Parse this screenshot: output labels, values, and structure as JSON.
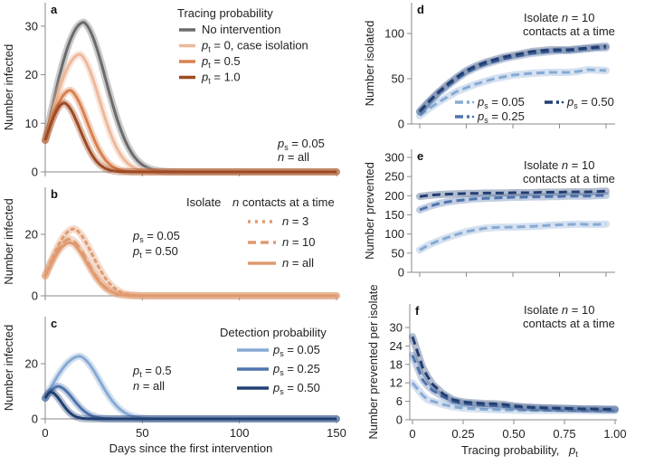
{
  "chart_data": [
    {
      "id": "a",
      "type": "line",
      "panel_letter": "a",
      "xlabel": "",
      "ylabel": "Number infected",
      "xlim": [
        0,
        150
      ],
      "ylim": [
        0,
        35
      ],
      "xticks": [
        0,
        50,
        100,
        150
      ],
      "xtick_labels": [
        "",
        "",
        "",
        ""
      ],
      "yticks": [
        0,
        10,
        20,
        30
      ],
      "ytick_labels": [
        "0",
        "10",
        "20",
        "30"
      ],
      "legend_title": "Tracing probability",
      "legend_position": "top-right",
      "annotations": [
        {
          "sym": "p",
          "sub": "s",
          "text": " = 0.05"
        },
        {
          "sym": "n",
          "sub": "",
          "text": " = all"
        }
      ],
      "series": [
        {
          "name": "No intervention",
          "legend": {
            "text": "No intervention"
          },
          "color": "#6b6b6b",
          "dash": "solid",
          "peak_day": 20,
          "peak": 30.8,
          "start": 6.5,
          "decay": 17
        },
        {
          "name": "pt = 0, case isolation",
          "legend": {
            "sym": "p",
            "sub": "t",
            "text": " = 0, case isolation"
          },
          "color": "#edb89a",
          "dash": "solid",
          "peak_day": 18,
          "peak": 24.2,
          "start": 6.5,
          "decay": 15
        },
        {
          "name": "pt = 0.5",
          "legend": {
            "sym": "p",
            "sub": "t",
            "text": " = 0.5"
          },
          "color": "#d9804f",
          "dash": "solid",
          "peak_day": 13,
          "peak": 16.8,
          "start": 6.5,
          "decay": 13
        },
        {
          "name": "pt = 1.0",
          "legend": {
            "sym": "p",
            "sub": "t",
            "text": " = 1.0"
          },
          "color": "#9e4a22",
          "dash": "solid",
          "peak_day": 10,
          "peak": 14.2,
          "start": 6.5,
          "decay": 12
        }
      ]
    },
    {
      "id": "b",
      "type": "line",
      "panel_letter": "b",
      "xlabel": "",
      "ylabel": "Number infected",
      "xlim": [
        0,
        150
      ],
      "ylim": [
        0,
        35
      ],
      "xticks": [
        0,
        50,
        100,
        150
      ],
      "xtick_labels": [
        "",
        "",
        "",
        ""
      ],
      "yticks": [
        0,
        20
      ],
      "ytick_labels": [
        "0",
        "20"
      ],
      "legend_title": "Isolate n contacts at a time",
      "legend_position": "top-right",
      "annotations": [
        {
          "sym": "p",
          "sub": "s",
          "text": " = 0.05"
        },
        {
          "sym": "p",
          "sub": "t",
          "text": " = 0.50"
        }
      ],
      "series": [
        {
          "name": "n = 3",
          "legend": {
            "sym": "n",
            "sub": "",
            "text": " = 3"
          },
          "color": "#e09a70",
          "dash": "dotted",
          "peak_day": 15,
          "peak": 21.8,
          "start": 6.5,
          "decay": 14
        },
        {
          "name": "n = 10",
          "legend": {
            "sym": "n",
            "sub": "",
            "text": " = 10"
          },
          "color": "#e09a70",
          "dash": "dashed",
          "peak_day": 13,
          "peak": 18.5,
          "start": 6.5,
          "decay": 13
        },
        {
          "name": "n = all",
          "legend": {
            "sym": "n",
            "sub": "",
            "text": " = all"
          },
          "color": "#e09a70",
          "dash": "solid",
          "peak_day": 13,
          "peak": 17.3,
          "start": 6.5,
          "decay": 13
        }
      ]
    },
    {
      "id": "c",
      "type": "line",
      "panel_letter": "c",
      "xlabel": "Days since the first intervention",
      "ylabel": "Number infected",
      "xlim": [
        0,
        150
      ],
      "ylim": [
        0,
        35
      ],
      "xticks": [
        0,
        50,
        100,
        150
      ],
      "xtick_labels": [
        "0",
        "50",
        "100",
        "150"
      ],
      "yticks": [
        0,
        20
      ],
      "ytick_labels": [
        "0",
        "20"
      ],
      "legend_title": "Detection probability",
      "legend_position": "top-right",
      "annotations": [
        {
          "sym": "p",
          "sub": "t",
          "text": " = 0.5"
        },
        {
          "sym": "n",
          "sub": "",
          "text": " = all"
        }
      ],
      "series": [
        {
          "name": "ps = 0.05",
          "legend": {
            "sym": "p",
            "sub": "s",
            "text": " = 0.05"
          },
          "color": "#86aad3",
          "dash": "solid",
          "peak_day": 18,
          "peak": 22.7,
          "start": 7.5,
          "decay": 15
        },
        {
          "name": "ps = 0.25",
          "legend": {
            "sym": "p",
            "sub": "s",
            "text": " = 0.25"
          },
          "color": "#4f74ad",
          "dash": "solid",
          "peak_day": 7,
          "peak": 11.8,
          "start": 7.5,
          "decay": 11
        },
        {
          "name": "ps = 0.50",
          "legend": {
            "sym": "p",
            "sub": "s",
            "text": " = 0.50"
          },
          "color": "#223f72",
          "dash": "solid",
          "peak_day": 3,
          "peak": 9.8,
          "start": 7.5,
          "decay": 8
        }
      ]
    },
    {
      "id": "d",
      "type": "line",
      "panel_letter": "d",
      "xlabel": "",
      "ylabel": "Number isolated",
      "xlim": [
        0,
        1
      ],
      "ylim": [
        0,
        130
      ],
      "xticks": [
        0,
        0.25,
        0.5,
        0.75,
        1.0
      ],
      "xtick_labels": [
        "",
        "",
        "",
        "",
        ""
      ],
      "yticks": [
        0,
        50,
        100
      ],
      "ytick_labels": [
        "0",
        "50",
        "100"
      ],
      "annotations_text": [
        "Isolate n = 10",
        "contacts at a time"
      ],
      "legend_position": "bottom",
      "x": [
        0,
        0.05,
        0.1,
        0.15,
        0.2,
        0.25,
        0.3,
        0.35,
        0.4,
        0.45,
        0.5,
        0.55,
        0.6,
        0.65,
        0.7,
        0.75,
        0.8,
        0.85,
        0.9,
        0.95,
        1.0
      ],
      "series": [
        {
          "name": "ps = 0.05",
          "legend": {
            "sym": "p",
            "sub": "s",
            "text": " = 0.05"
          },
          "color": "#86aad3",
          "values": [
            9,
            17,
            24,
            30,
            36,
            40,
            44,
            47,
            50,
            52,
            54,
            55,
            56,
            56.5,
            57,
            57,
            57,
            58,
            60,
            59.5,
            59
          ]
        },
        {
          "name": "ps = 0.25",
          "legend": {
            "sym": "p",
            "sub": "s",
            "text": " = 0.25"
          },
          "color": "#4f74ad",
          "values": [
            13,
            24,
            34,
            42,
            50,
            57,
            62,
            66,
            69,
            72,
            74,
            76,
            78,
            79,
            80,
            81,
            81,
            82,
            83,
            84,
            84
          ]
        },
        {
          "name": "ps = 0.50",
          "legend": {
            "sym": "p",
            "sub": "s",
            "text": " = 0.50"
          },
          "color": "#223f72",
          "values": [
            14,
            25,
            35,
            44,
            52,
            59,
            64,
            68,
            71,
            74,
            76,
            78,
            80,
            81,
            82,
            82,
            82,
            83,
            84,
            85,
            86
          ]
        }
      ]
    },
    {
      "id": "e",
      "type": "line",
      "panel_letter": "e",
      "xlabel": "",
      "ylabel": "Number prevented",
      "xlim": [
        0,
        1
      ],
      "ylim": [
        0,
        310
      ],
      "xticks": [
        0,
        0.25,
        0.5,
        0.75,
        1.0
      ],
      "xtick_labels": [
        "",
        "",
        "",
        "",
        ""
      ],
      "yticks": [
        0,
        50,
        100,
        150,
        200,
        250,
        300
      ],
      "ytick_labels": [
        "0",
        "50",
        "100",
        "150",
        "200",
        "250",
        "300"
      ],
      "annotations_text": [
        "Isolate n = 10",
        "contacts at a time"
      ],
      "x": [
        0,
        0.05,
        0.1,
        0.15,
        0.2,
        0.25,
        0.3,
        0.35,
        0.4,
        0.45,
        0.5,
        0.55,
        0.6,
        0.65,
        0.7,
        0.75,
        0.8,
        0.85,
        0.9,
        0.95,
        1.0
      ],
      "series": [
        {
          "name": "ps = 0.05",
          "color": "#86aad3",
          "values": [
            58,
            72,
            82,
            91,
            99,
            106,
            111,
            115,
            117,
            118,
            118,
            119,
            120,
            121,
            123,
            124,
            125,
            126,
            125,
            125,
            126
          ]
        },
        {
          "name": "ps = 0.25",
          "color": "#4f74ad",
          "values": [
            163,
            172,
            179,
            184,
            187,
            190,
            192,
            193,
            194,
            195,
            196,
            196,
            197,
            197,
            198,
            198,
            199,
            199,
            199,
            200,
            201
          ]
        },
        {
          "name": "ps = 0.50",
          "color": "#223f72",
          "values": [
            198,
            201,
            203,
            204,
            205,
            206,
            206,
            207,
            207,
            207,
            208,
            208,
            208,
            209,
            209,
            209,
            210,
            210,
            210,
            211,
            212
          ]
        }
      ]
    },
    {
      "id": "f",
      "type": "line",
      "panel_letter": "f",
      "xlabel": "Tracing probability, pt",
      "xlabel_parts": {
        "text": "Tracing probability, ",
        "sym": "p",
        "sub": "t"
      },
      "ylabel": "Number prevented per isolate",
      "xlim": [
        0,
        1
      ],
      "ylim": [
        0,
        36
      ],
      "xticks": [
        0,
        0.25,
        0.5,
        0.75,
        1.0
      ],
      "xtick_labels": [
        "0",
        "0.25",
        "0.50",
        "0.75",
        "1.00"
      ],
      "yticks": [
        0,
        6,
        12,
        18,
        24,
        30
      ],
      "ytick_labels": [
        "0",
        "6",
        "12",
        "18",
        "24",
        "30"
      ],
      "annotations_text": [
        "Isolate n = 10",
        "contacts at a time"
      ],
      "x": [
        0,
        0.025,
        0.05,
        0.075,
        0.1,
        0.15,
        0.2,
        0.25,
        0.3,
        0.35,
        0.4,
        0.45,
        0.5,
        0.55,
        0.6,
        0.65,
        0.7,
        0.75,
        0.8,
        0.85,
        0.9,
        0.95,
        1.0
      ],
      "series": [
        {
          "name": "ps = 0.05",
          "color": "#86aad3",
          "values": [
            12,
            10,
            8,
            6.5,
            6,
            5,
            4.2,
            3.8,
            3.6,
            3.4,
            3.3,
            3.2,
            3.1,
            3.0,
            3.0,
            3.0,
            3.0,
            3.0,
            3.0,
            3.0,
            2.9,
            2.9,
            2.9
          ]
        },
        {
          "name": "ps = 0.25",
          "color": "#4f74ad",
          "values": [
            21,
            17,
            13,
            11,
            9.5,
            7.5,
            6,
            5.3,
            5,
            4.8,
            4.6,
            4.4,
            4.2,
            4.0,
            3.9,
            3.8,
            3.7,
            3.6,
            3.6,
            3.5,
            3.5,
            3.4,
            3.4
          ]
        },
        {
          "name": "ps = 0.50",
          "color": "#223f72",
          "values": [
            27,
            22,
            17,
            14,
            11.5,
            8.5,
            6.5,
            5.8,
            5.5,
            5.3,
            5.2,
            5,
            4.5,
            4.2,
            4.0,
            3.9,
            3.8,
            3.7,
            3.6,
            3.5,
            3.5,
            3.4,
            3.4
          ]
        }
      ]
    }
  ]
}
